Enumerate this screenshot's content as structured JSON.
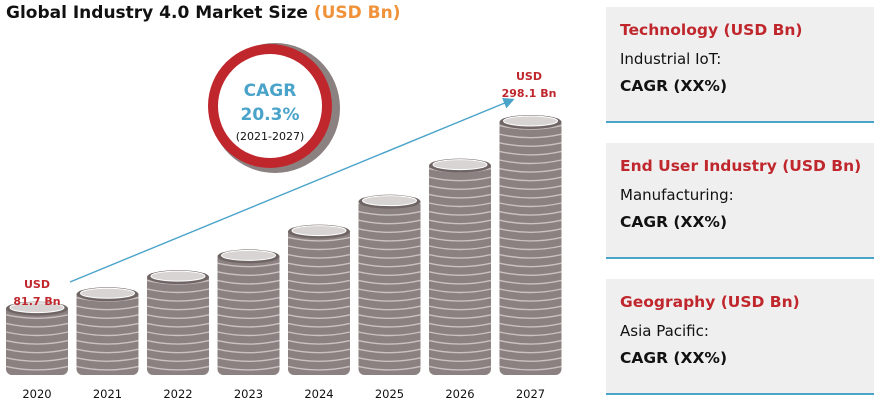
{
  "chart_data": {
    "type": "bar",
    "title": "Global Industry 4.0 Market Size",
    "title_unit": "(USD Bn)",
    "categories": [
      "2020",
      "2021",
      "2022",
      "2023",
      "2024",
      "2025",
      "2026",
      "2027"
    ],
    "values": [
      81.7,
      98.3,
      118.2,
      142.2,
      171.0,
      205.7,
      247.5,
      298.1
    ],
    "start_label": [
      "USD",
      "81.7 Bn"
    ],
    "end_label": [
      "USD",
      "298.1 Bn"
    ],
    "cagr": {
      "label": "CAGR",
      "value": "20.3%",
      "period": "(2021-2027)"
    },
    "colors": {
      "coin": "#8b8180",
      "coin_dark": "#6f6564",
      "coin_top": "#d8d4d3",
      "arrow": "#4aa3c9",
      "ring": "#c0272d",
      "accent": "#f0923a",
      "label": "#c0272d"
    }
  },
  "panels": [
    {
      "heading": "Technology (USD Bn)",
      "label": "Industrial IoT:",
      "cagr": "CAGR (XX%)"
    },
    {
      "heading": "End User Industry (USD Bn)",
      "label": "Manufacturing:",
      "cagr": "CAGR (XX%)"
    },
    {
      "heading": "Geography (USD Bn)",
      "label": "Asia Pacific:",
      "cagr": "CAGR (XX%)"
    }
  ]
}
